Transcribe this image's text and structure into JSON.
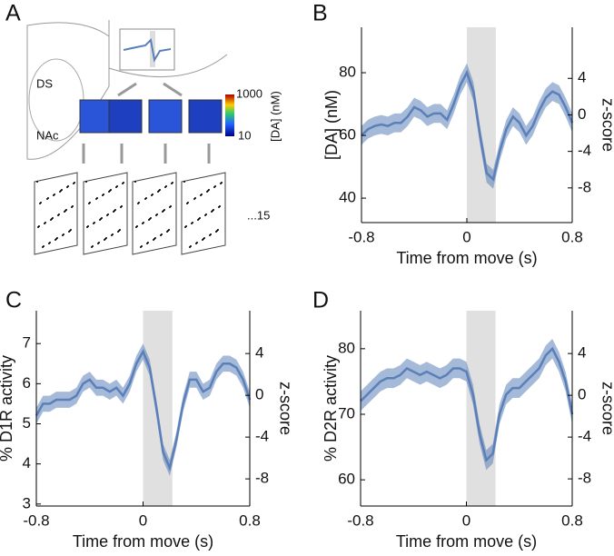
{
  "diagram": {
    "label": "A",
    "ds": "DS",
    "nac": "NAc",
    "scale_max": "1000",
    "scale_min": "10",
    "scale_unit": "[DA] (nM)",
    "count": "...15"
  },
  "chart_data": [
    {
      "type": "line",
      "panel_label": "B",
      "xlabel": "Time from move (s)",
      "ylabel": "[DA] (nM)",
      "y2label": "z-score",
      "xlim": [
        -0.8,
        0.8
      ],
      "xticks": [
        -0.8,
        0,
        0.8
      ],
      "ylim": [
        32.2,
        94.5
      ],
      "yticks": [
        40,
        60,
        80
      ],
      "y2lim": [
        -11.8,
        9.6
      ],
      "y2ticks": [
        4,
        0,
        -4,
        -8
      ],
      "shade": [
        0,
        0.22
      ],
      "x": [
        -0.8,
        -0.75,
        -0.7,
        -0.65,
        -0.6,
        -0.55,
        -0.5,
        -0.45,
        -0.4,
        -0.35,
        -0.3,
        -0.25,
        -0.2,
        -0.15,
        -0.1,
        -0.05,
        0,
        0.05,
        0.1,
        0.15,
        0.2,
        0.25,
        0.3,
        0.35,
        0.4,
        0.45,
        0.5,
        0.55,
        0.6,
        0.65,
        0.7,
        0.75,
        0.8
      ],
      "series": [
        {
          "color": "#5b7fb8",
          "values": [
            60,
            62,
            63,
            63.5,
            63,
            64,
            64,
            66,
            69,
            68,
            66,
            67,
            67,
            65,
            70,
            76,
            80,
            74,
            60,
            48,
            46,
            55,
            62,
            66,
            64,
            60,
            63,
            68,
            72,
            74,
            73,
            69,
            64
          ],
          "errors": [
            3,
            3,
            3,
            3,
            3,
            3,
            3,
            3,
            3,
            3,
            3,
            3,
            3,
            3,
            3,
            3,
            3,
            3,
            3,
            3,
            3,
            3,
            3,
            3,
            3,
            3,
            3,
            3,
            3,
            3,
            3,
            3,
            3
          ]
        }
      ]
    },
    {
      "type": "line",
      "panel_label": "C",
      "xlabel": "Time from move (s)",
      "ylabel": "% D1R activity",
      "y2label": "z-score",
      "xlim": [
        -0.8,
        0.8
      ],
      "xticks": [
        -0.8,
        0,
        0.8
      ],
      "ylim": [
        2.95,
        7.82
      ],
      "yticks": [
        3,
        4,
        5,
        6,
        7
      ],
      "y2lim": [
        -10.6,
        8.1
      ],
      "y2ticks": [
        4,
        0,
        -4,
        -8
      ],
      "shade": [
        0,
        0.22
      ],
      "x": [
        -0.8,
        -0.75,
        -0.7,
        -0.65,
        -0.6,
        -0.55,
        -0.5,
        -0.45,
        -0.4,
        -0.35,
        -0.3,
        -0.25,
        -0.2,
        -0.15,
        -0.1,
        -0.05,
        0,
        0.05,
        0.1,
        0.15,
        0.2,
        0.25,
        0.3,
        0.35,
        0.4,
        0.45,
        0.5,
        0.55,
        0.6,
        0.65,
        0.7,
        0.75,
        0.8
      ],
      "series": [
        {
          "color": "#5b7fb8",
          "values": [
            5.2,
            5.5,
            5.5,
            5.6,
            5.6,
            5.6,
            5.7,
            6,
            6.1,
            5.9,
            5.9,
            5.8,
            5.9,
            5.7,
            6,
            6.5,
            6.8,
            6.4,
            5.4,
            4.3,
            3.9,
            4.6,
            5.5,
            6.1,
            6.1,
            5.8,
            5.9,
            6.3,
            6.5,
            6.5,
            6.4,
            6.1,
            5.6
          ],
          "errors": [
            0.2,
            0.2,
            0.2,
            0.2,
            0.2,
            0.2,
            0.2,
            0.2,
            0.2,
            0.2,
            0.2,
            0.2,
            0.2,
            0.2,
            0.2,
            0.2,
            0.2,
            0.2,
            0.2,
            0.2,
            0.2,
            0.2,
            0.2,
            0.2,
            0.2,
            0.2,
            0.2,
            0.2,
            0.2,
            0.2,
            0.2,
            0.2,
            0.2
          ]
        }
      ]
    },
    {
      "type": "line",
      "panel_label": "D",
      "xlabel": "Time from move (s)",
      "ylabel": "% D2R activity",
      "y2label": "z-score",
      "xlim": [
        -0.8,
        0.8
      ],
      "xticks": [
        -0.8,
        0,
        0.8
      ],
      "ylim": [
        56,
        85.8
      ],
      "yticks": [
        60,
        70,
        80
      ],
      "y2lim": [
        -10.6,
        8.1
      ],
      "y2ticks": [
        4,
        0,
        -4,
        -8
      ],
      "shade": [
        0,
        0.22
      ],
      "x": [
        -0.8,
        -0.75,
        -0.7,
        -0.65,
        -0.6,
        -0.55,
        -0.5,
        -0.45,
        -0.4,
        -0.35,
        -0.3,
        -0.25,
        -0.2,
        -0.15,
        -0.1,
        -0.05,
        0,
        0.05,
        0.1,
        0.15,
        0.2,
        0.25,
        0.3,
        0.35,
        0.4,
        0.45,
        0.5,
        0.55,
        0.6,
        0.65,
        0.7,
        0.75,
        0.8
      ],
      "series": [
        {
          "color": "#5b7fb8",
          "values": [
            72,
            73,
            74,
            75,
            75.5,
            75.5,
            76,
            77,
            76.5,
            76,
            76.5,
            76,
            75.5,
            76,
            77,
            77,
            76.5,
            73,
            67,
            63,
            64,
            70,
            73,
            74,
            74,
            75,
            76,
            77,
            79,
            80,
            78,
            75,
            70
          ],
          "errors": [
            1.5,
            1.5,
            1.5,
            1.5,
            1.5,
            1.5,
            1.5,
            1.5,
            1.5,
            1.5,
            1.5,
            1.5,
            1.5,
            1.5,
            1.5,
            1.5,
            1.5,
            1.5,
            1.5,
            1.5,
            1.5,
            1.5,
            1.5,
            1.5,
            1.5,
            1.5,
            1.5,
            1.5,
            1.5,
            1.5,
            1.5,
            1.5,
            1.5
          ]
        }
      ]
    }
  ]
}
